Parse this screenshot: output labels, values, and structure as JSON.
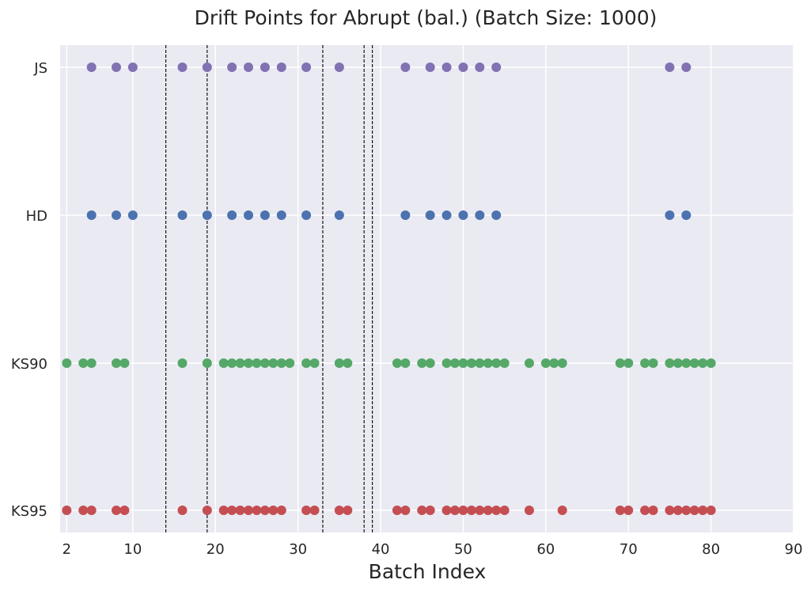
{
  "chart_data": {
    "type": "scatter",
    "title": "Drift Points for Abrupt (bal.) (Batch Size: 1000)",
    "xlabel": "Batch Index",
    "ylabel": "",
    "xlim": [
      1.2,
      90
    ],
    "x_ticks": [
      2,
      10,
      20,
      30,
      40,
      50,
      60,
      70,
      80,
      90
    ],
    "categories": [
      "KS95",
      "KS90",
      "HD",
      "JS"
    ],
    "grid": true,
    "series": [
      {
        "name": "KS95",
        "color": "#c44e52",
        "x": [
          2,
          4,
          5,
          8,
          9,
          16,
          19,
          21,
          22,
          23,
          24,
          25,
          26,
          27,
          28,
          31,
          32,
          35,
          36,
          42,
          43,
          45,
          46,
          48,
          49,
          50,
          51,
          52,
          53,
          54,
          55,
          58,
          62,
          69,
          70,
          72,
          73,
          75,
          76,
          77,
          78,
          79,
          80
        ]
      },
      {
        "name": "KS90",
        "color": "#55a868",
        "x": [
          2,
          4,
          5,
          8,
          9,
          16,
          19,
          21,
          22,
          23,
          24,
          25,
          26,
          27,
          28,
          29,
          31,
          32,
          35,
          36,
          42,
          43,
          45,
          46,
          48,
          49,
          50,
          51,
          52,
          53,
          54,
          55,
          58,
          60,
          61,
          62,
          69,
          70,
          72,
          73,
          75,
          76,
          77,
          78,
          79,
          80
        ]
      },
      {
        "name": "HD",
        "color": "#4c72b0",
        "x": [
          5,
          8,
          10,
          16,
          19,
          22,
          24,
          26,
          28,
          31,
          35,
          43,
          46,
          48,
          50,
          52,
          54,
          75,
          77
        ]
      },
      {
        "name": "JS",
        "color": "#8172b3",
        "x": [
          5,
          8,
          10,
          16,
          19,
          22,
          24,
          26,
          28,
          31,
          35,
          43,
          46,
          48,
          50,
          52,
          54,
          75,
          77
        ]
      }
    ],
    "drift_lines": [
      14,
      19,
      33,
      38,
      39
    ]
  }
}
